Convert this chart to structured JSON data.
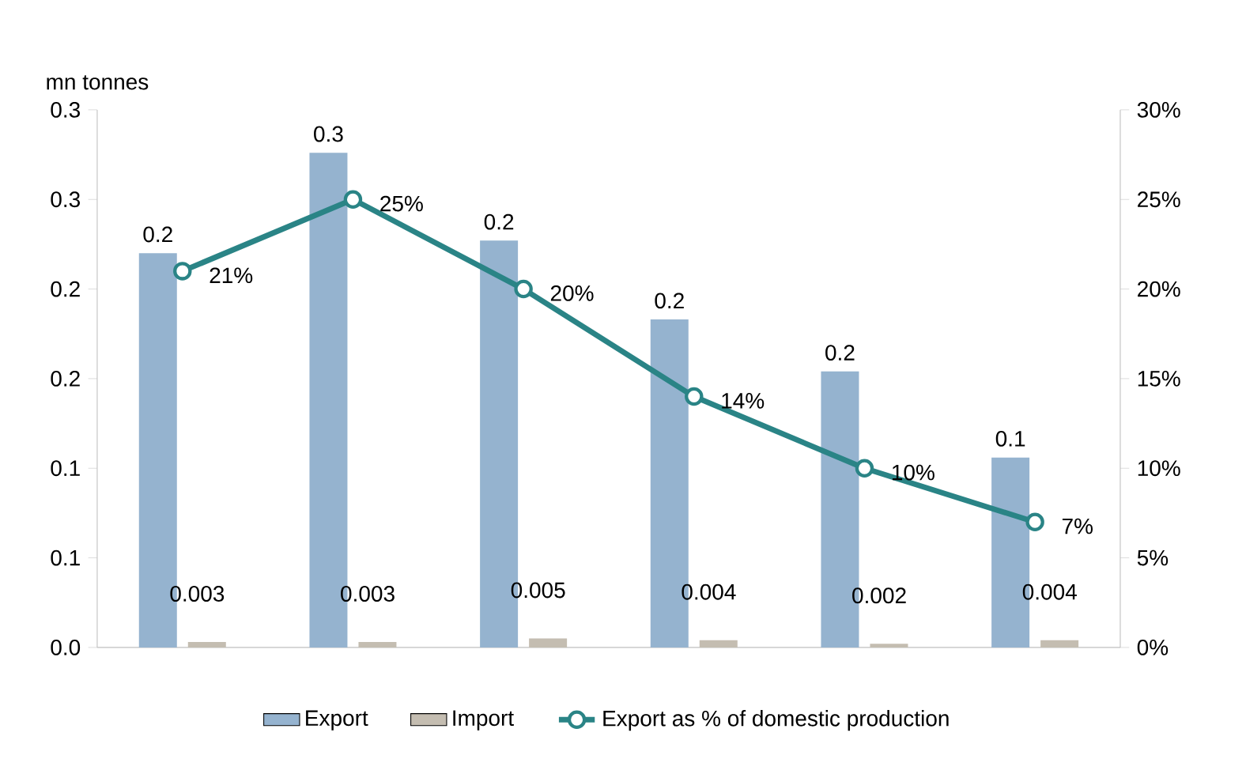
{
  "chart_data": {
    "type": "bar",
    "ylabel": "mn tonnes",
    "categories": [
      null,
      null,
      null,
      null,
      null,
      null
    ],
    "ylim": [
      0,
      0.3
    ],
    "yticks": [
      {
        "value": 0,
        "label": "0.0"
      },
      {
        "value": 0.05,
        "label": "0.1"
      },
      0.1,
      {
        "value": 0.15,
        "label": "0.2"
      },
      0.2,
      {
        "value": 0.25,
        "label": "0.3"
      },
      0.3
    ],
    "y2lim": [
      0,
      30
    ],
    "y2ticks": [
      {
        "value": 0,
        "label": "0%"
      },
      {
        "value": 5,
        "label": "5%"
      },
      {
        "value": 10,
        "label": "10%"
      },
      {
        "value": 15,
        "label": "15%"
      },
      {
        "value": 20,
        "label": "20%"
      },
      {
        "value": 25,
        "label": "25%"
      },
      {
        "value": 30,
        "label": "30%"
      }
    ],
    "legend": "bottom",
    "series": [
      {
        "name": "Export",
        "color": "#95b3cf",
        "values": [
          0.22,
          0.276,
          0.227,
          0.183,
          0.154,
          0.106
        ],
        "value_labels": [
          "0.2",
          "0.3",
          "0.2",
          "0.2",
          "0.2",
          "0.1"
        ]
      },
      {
        "name": "Import",
        "color": "#c4bdb1",
        "values": [
          0.003,
          0.003,
          0.005,
          0.004,
          0.002,
          0.004
        ],
        "value_labels": [
          "0.003",
          "0.003",
          "0.005",
          "0.004",
          "0.002",
          "0.004"
        ]
      },
      {
        "name": "Export as % of domestic production",
        "type": "line",
        "axis": "y2",
        "marker": "circle",
        "line_style": "solid",
        "color": "#2a8486",
        "values": [
          21,
          25,
          20,
          14,
          10,
          7
        ],
        "value_labels": [
          "21%",
          "25%",
          "20%",
          "14%",
          "10%",
          "7%"
        ]
      }
    ]
  }
}
